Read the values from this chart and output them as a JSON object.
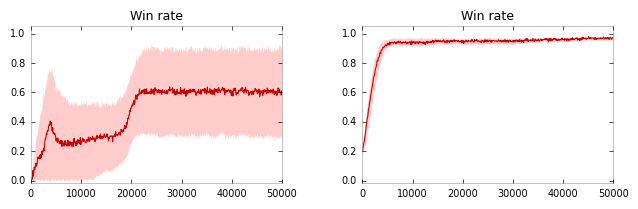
{
  "title": "Win rate",
  "line_color": "#cc0000",
  "fill_color": "#ffaaaa",
  "fill_alpha": 0.6,
  "left": {
    "xlim": [
      0,
      50000
    ],
    "ylim": [
      -0.02,
      1.05
    ],
    "yticks": [
      0.0,
      0.2,
      0.4,
      0.6,
      0.8,
      1.0
    ],
    "xticks": [
      0,
      10000,
      20000,
      30000,
      40000,
      50000
    ],
    "xticklabels": [
      "0",
      "10000",
      "20000",
      "30000",
      "40000",
      "50000"
    ],
    "mean_x": [
      0,
      200,
      500,
      800,
      1000,
      1500,
      2000,
      2500,
      3000,
      3500,
      4000,
      4500,
      5000,
      6000,
      7000,
      8000,
      9000,
      10000,
      11000,
      12000,
      13000,
      14000,
      15000,
      16000,
      17000,
      18000,
      19000,
      20000,
      21000,
      22000,
      23000,
      24000,
      25000,
      26000,
      27000,
      28000,
      29000,
      30000,
      31000,
      32000,
      33000,
      34000,
      35000,
      36000,
      37000,
      38000,
      39000,
      40000,
      41000,
      42000,
      43000,
      44000,
      45000,
      46000,
      47000,
      48000,
      49000,
      50000
    ],
    "mean_y": [
      0.0,
      0.02,
      0.06,
      0.09,
      0.1,
      0.14,
      0.17,
      0.22,
      0.3,
      0.37,
      0.38,
      0.32,
      0.28,
      0.26,
      0.25,
      0.25,
      0.26,
      0.27,
      0.27,
      0.28,
      0.29,
      0.3,
      0.3,
      0.3,
      0.31,
      0.33,
      0.38,
      0.5,
      0.57,
      0.6,
      0.61,
      0.61,
      0.61,
      0.6,
      0.61,
      0.62,
      0.6,
      0.61,
      0.6,
      0.62,
      0.6,
      0.61,
      0.62,
      0.6,
      0.61,
      0.62,
      0.6,
      0.61,
      0.6,
      0.62,
      0.61,
      0.6,
      0.61,
      0.6,
      0.61,
      0.6,
      0.6,
      0.6
    ],
    "upper_x": [
      0,
      200,
      500,
      800,
      1000,
      1500,
      2000,
      2500,
      3000,
      3500,
      4000,
      4500,
      5000,
      6000,
      7000,
      8000,
      9000,
      10000,
      11000,
      12000,
      13000,
      14000,
      15000,
      16000,
      17000,
      18000,
      19000,
      20000,
      21000,
      22000,
      23000,
      24000,
      25000,
      26000,
      27000,
      28000,
      29000,
      30000,
      31000,
      32000,
      33000,
      34000,
      35000,
      36000,
      37000,
      38000,
      39000,
      40000,
      41000,
      42000,
      43000,
      44000,
      45000,
      46000,
      47000,
      48000,
      49000,
      50000
    ],
    "upper_y": [
      0.03,
      0.07,
      0.15,
      0.22,
      0.28,
      0.38,
      0.48,
      0.58,
      0.67,
      0.74,
      0.76,
      0.7,
      0.63,
      0.58,
      0.55,
      0.52,
      0.52,
      0.52,
      0.52,
      0.52,
      0.53,
      0.53,
      0.53,
      0.52,
      0.54,
      0.57,
      0.63,
      0.73,
      0.83,
      0.88,
      0.9,
      0.91,
      0.9,
      0.89,
      0.9,
      0.91,
      0.89,
      0.9,
      0.89,
      0.91,
      0.89,
      0.9,
      0.91,
      0.89,
      0.9,
      0.91,
      0.89,
      0.9,
      0.89,
      0.91,
      0.9,
      0.89,
      0.9,
      0.89,
      0.9,
      0.89,
      0.9,
      0.91
    ],
    "lower_x": [
      0,
      200,
      500,
      800,
      1000,
      1500,
      2000,
      2500,
      3000,
      3500,
      4000,
      4500,
      5000,
      6000,
      7000,
      8000,
      9000,
      10000,
      11000,
      12000,
      13000,
      14000,
      15000,
      16000,
      17000,
      18000,
      19000,
      20000,
      21000,
      22000,
      23000,
      24000,
      25000,
      26000,
      27000,
      28000,
      29000,
      30000,
      31000,
      32000,
      33000,
      34000,
      35000,
      36000,
      37000,
      38000,
      39000,
      40000,
      41000,
      42000,
      43000,
      44000,
      45000,
      46000,
      47000,
      48000,
      49000,
      50000
    ],
    "lower_y": [
      0.0,
      0.0,
      0.0,
      0.0,
      0.0,
      0.0,
      0.0,
      0.0,
      0.0,
      0.0,
      0.0,
      0.0,
      0.0,
      0.0,
      0.0,
      0.0,
      0.0,
      0.0,
      0.0,
      0.01,
      0.03,
      0.05,
      0.07,
      0.07,
      0.09,
      0.12,
      0.16,
      0.27,
      0.31,
      0.32,
      0.31,
      0.32,
      0.31,
      0.3,
      0.31,
      0.32,
      0.3,
      0.31,
      0.3,
      0.32,
      0.3,
      0.31,
      0.32,
      0.3,
      0.31,
      0.32,
      0.3,
      0.31,
      0.3,
      0.32,
      0.31,
      0.3,
      0.31,
      0.3,
      0.31,
      0.3,
      0.29,
      0.3
    ]
  },
  "right": {
    "xlim": [
      0,
      50000
    ],
    "ylim": [
      -0.02,
      1.05
    ],
    "yticks": [
      0.0,
      0.2,
      0.4,
      0.6,
      0.8,
      1.0
    ],
    "xticks": [
      0,
      10000,
      20000,
      30000,
      40000,
      50000
    ],
    "xticklabels": [
      "0",
      "10000",
      "20000",
      "30000",
      "40000",
      "50000"
    ],
    "mean_x": [
      0,
      300,
      600,
      1000,
      1500,
      2000,
      2500,
      3000,
      3500,
      4000,
      4500,
      5000,
      6000,
      7000,
      8000,
      9000,
      10000,
      12000,
      15000,
      20000,
      25000,
      30000,
      35000,
      40000,
      45000,
      50000
    ],
    "mean_y": [
      0.2,
      0.25,
      0.32,
      0.42,
      0.54,
      0.65,
      0.74,
      0.81,
      0.86,
      0.9,
      0.92,
      0.93,
      0.94,
      0.94,
      0.94,
      0.94,
      0.94,
      0.94,
      0.95,
      0.95,
      0.95,
      0.95,
      0.96,
      0.96,
      0.97,
      0.97
    ],
    "upper_x": [
      0,
      300,
      600,
      1000,
      1500,
      2000,
      2500,
      3000,
      3500,
      4000,
      4500,
      5000,
      6000,
      7000,
      8000,
      9000,
      10000,
      12000,
      15000,
      20000,
      25000,
      30000,
      35000,
      40000,
      45000,
      50000
    ],
    "upper_y": [
      0.22,
      0.3,
      0.4,
      0.52,
      0.65,
      0.76,
      0.84,
      0.89,
      0.93,
      0.95,
      0.96,
      0.96,
      0.97,
      0.97,
      0.97,
      0.97,
      0.97,
      0.97,
      0.97,
      0.97,
      0.97,
      0.97,
      0.97,
      0.97,
      0.97,
      0.98
    ],
    "lower_x": [
      0,
      300,
      600,
      1000,
      1500,
      2000,
      2500,
      3000,
      3500,
      4000,
      4500,
      5000,
      6000,
      7000,
      8000,
      9000,
      10000,
      12000,
      15000,
      20000,
      25000,
      30000,
      35000,
      40000,
      45000,
      50000
    ],
    "lower_y": [
      0.18,
      0.2,
      0.25,
      0.32,
      0.44,
      0.55,
      0.64,
      0.73,
      0.8,
      0.85,
      0.89,
      0.91,
      0.92,
      0.92,
      0.92,
      0.92,
      0.92,
      0.92,
      0.93,
      0.93,
      0.93,
      0.93,
      0.95,
      0.95,
      0.96,
      0.96
    ]
  }
}
